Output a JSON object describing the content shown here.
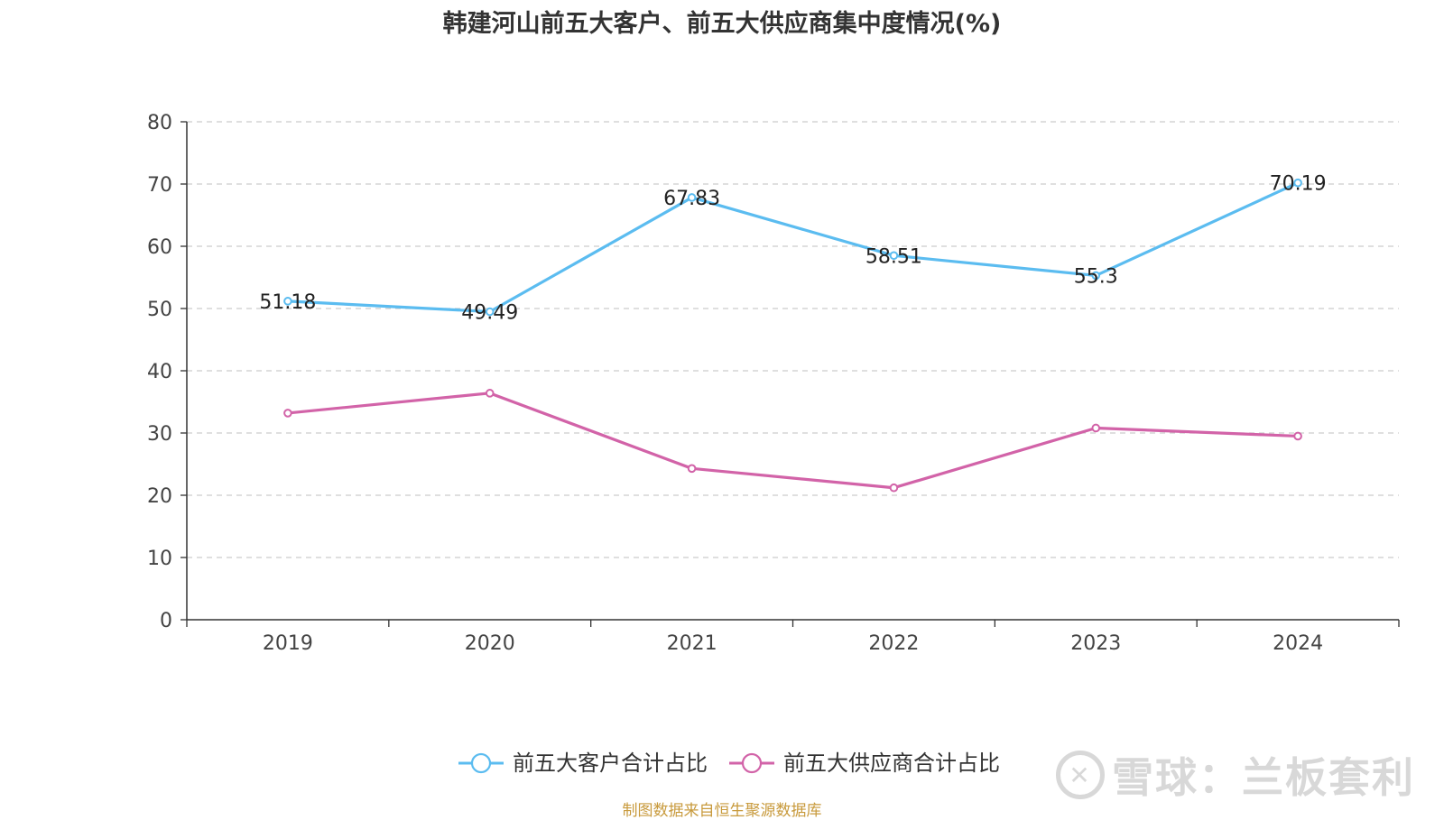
{
  "chart_data": {
    "type": "line",
    "title": "韩建河山前五大客户、前五大供应商集中度情况(%)",
    "categories": [
      "2019",
      "2020",
      "2021",
      "2022",
      "2023",
      "2024"
    ],
    "ylim": [
      0,
      80
    ],
    "yticks": [
      0,
      10,
      20,
      30,
      40,
      50,
      60,
      70,
      80
    ],
    "grid": true,
    "legend_position": "bottom",
    "series": [
      {
        "name": "前五大客户合计占比",
        "color": "#5bbcf0",
        "values": [
          51.18,
          49.49,
          67.83,
          58.51,
          55.3,
          70.19
        ],
        "labels": [
          "51.18",
          "49.49",
          "67.83",
          "58.51",
          "55.3",
          "70.19"
        ],
        "show_labels": true
      },
      {
        "name": "前五大供应商合计占比",
        "color": "#d263a8",
        "values": [
          33.2,
          36.4,
          24.3,
          21.2,
          30.8,
          29.5
        ],
        "show_labels": false
      }
    ]
  },
  "footer": {
    "source": "制图数据来自恒生聚源数据库",
    "watermark": "雪球：兰板套利"
  }
}
